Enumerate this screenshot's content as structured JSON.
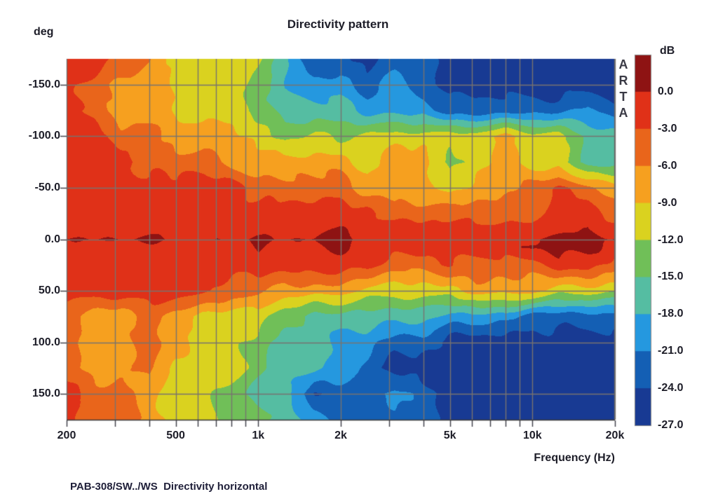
{
  "title": "Directivity pattern",
  "caption": "PAB-308/SW../WS  Directivity horizontal",
  "watermark": {
    "text": "ARTA"
  },
  "y_axis": {
    "unit": "deg",
    "tick_labels": [
      "-150.0",
      "-100.0",
      "-50.0",
      "0.0",
      "50.0",
      "100.0",
      "150.0"
    ],
    "tick_values": [
      -150,
      -100,
      -50,
      0,
      50,
      100,
      150
    ],
    "range_deg": [
      -175,
      175
    ]
  },
  "x_axis": {
    "label": "Frequency (Hz)",
    "tick_labels": [
      "200",
      "500",
      "1k",
      "2k",
      "5k",
      "10k",
      "20k"
    ],
    "tick_values": [
      200,
      500,
      1000,
      2000,
      5000,
      10000,
      20000
    ],
    "gridline_values": [
      300,
      400,
      500,
      600,
      700,
      800,
      900,
      1000,
      2000,
      3000,
      4000,
      5000,
      6000,
      7000,
      8000,
      9000,
      10000,
      20000
    ],
    "minor_tick_values": [
      200,
      300,
      400,
      500,
      600,
      700,
      800,
      900,
      1000,
      2000,
      3000,
      4000,
      5000,
      6000,
      7000,
      8000,
      9000,
      10000,
      20000
    ],
    "scale": "log",
    "range_hz": [
      200,
      20000
    ]
  },
  "colorbar": {
    "unit": "dB",
    "tick_labels": [
      "0.0",
      "-3.0",
      "-6.0",
      "-9.0",
      "-12.0",
      "-15.0",
      "-18.0",
      "-21.0",
      "-24.0",
      "-27.0"
    ],
    "tick_values": [
      0,
      -3,
      -6,
      -9,
      -12,
      -15,
      -18,
      -21,
      -24,
      -27
    ],
    "band_step_db": 3,
    "colors": [
      "#8e1313",
      "#e03118",
      "#e9651b",
      "#f6a01f",
      "#dad21f",
      "#70bf58",
      "#55bda2",
      "#2598df",
      "#145fb4",
      "#183a93"
    ]
  },
  "grid_color": "#77736f",
  "chart_data": {
    "type": "heatmap",
    "title": "Directivity pattern",
    "xlabel": "Frequency (Hz)",
    "ylabel": "deg",
    "value_unit": "dB",
    "x_scale": "log",
    "x_range_hz": [
      200,
      20000
    ],
    "y_range_deg": [
      -175,
      175
    ],
    "color_levels_db": [
      0,
      -3,
      -6,
      -9,
      -12,
      -15,
      -18,
      -21,
      -24,
      -27
    ],
    "x_frequencies_hz": [
      200,
      250,
      315,
      400,
      500,
      630,
      800,
      1000,
      1250,
      1600,
      2000,
      2500,
      3150,
      4000,
      5000,
      6300,
      8000,
      10000,
      12500,
      16000,
      20000
    ],
    "y_angles_deg": [
      -175,
      -150,
      -125,
      -100,
      -75,
      -50,
      -25,
      -8,
      0,
      8,
      25,
      50,
      75,
      100,
      125,
      150,
      175
    ],
    "values_db": [
      [
        -1.5,
        -1.5,
        -3,
        -6,
        -9.5,
        -10.5,
        -10.5,
        -12,
        -17,
        -24.5,
        -22.5,
        -25.5,
        -22.5,
        -22.5,
        -25.5,
        -25.5,
        -25.5,
        -25.5,
        -25.5,
        -25.5,
        -25.5
      ],
      [
        -1.5,
        -4.5,
        -7.5,
        -7.5,
        -9.5,
        -10.5,
        -10.5,
        -13.5,
        -18.5,
        -19.5,
        -19.5,
        -22.5,
        -19.5,
        -22.5,
        -25.5,
        -25.5,
        -25.5,
        -25.5,
        -25.5,
        -25.5,
        -25.5
      ],
      [
        -1.5,
        -4.5,
        -7.5,
        -7.5,
        -9,
        -10.5,
        -10.5,
        -13.5,
        -16.5,
        -16.5,
        -16.5,
        -19.5,
        -19.5,
        -19.5,
        -22.5,
        -22.5,
        -22.5,
        -22.5,
        -22.5,
        -19.5,
        -22.5
      ],
      [
        -1.5,
        -1.5,
        -4.5,
        -4.5,
        -7.5,
        -7.5,
        -7.5,
        -10.5,
        -13.5,
        -11.5,
        -12.5,
        -10.5,
        -10.5,
        -10.5,
        -10.5,
        -10.5,
        -7.5,
        -10.5,
        -10.5,
        -16.5,
        -16.5
      ],
      [
        -1.5,
        -1.5,
        -1.5,
        -4.5,
        -4.5,
        -4.5,
        -7.5,
        -7.5,
        -7.5,
        -7.5,
        -7.5,
        -10.5,
        -7.5,
        -7.5,
        -13.5,
        -10.5,
        -7.5,
        -10.5,
        -10.5,
        -16.5,
        -16.5
      ],
      [
        -1.5,
        -1.5,
        -1.5,
        -1.5,
        -1.5,
        -1.5,
        -1.5,
        -4.5,
        -4.5,
        -4.5,
        -4.5,
        -7.5,
        -7.5,
        -7.5,
        -10.5,
        -7.5,
        -7.5,
        -4.5,
        -3,
        -4.5,
        -7.5
      ],
      [
        -1.5,
        -1.5,
        -1.5,
        -1.5,
        -1.5,
        -1.5,
        -1.5,
        -1.5,
        -1.5,
        -1.5,
        -1.5,
        -1.5,
        -4.5,
        -4.5,
        -4.5,
        -4.5,
        -4.5,
        -4.5,
        -1.5,
        -1.5,
        -4.5
      ],
      [
        -1.2,
        -1.2,
        -1.2,
        -1.2,
        -1.2,
        -1.2,
        -1.2,
        -1.2,
        -1.2,
        -1.2,
        0.5,
        -1.2,
        -1.5,
        -1.5,
        -1.5,
        -1.5,
        -1.5,
        -1.5,
        -1.2,
        0.5,
        -1.5
      ],
      [
        0.4,
        0.4,
        0.4,
        0.3,
        -0.5,
        -0.5,
        -0.5,
        1.2,
        -0.4,
        0.2,
        1.4,
        -0.4,
        -1,
        -1,
        -1,
        -1,
        -1,
        0.4,
        1.3,
        1.4,
        -0.4
      ],
      [
        -1.2,
        -1.2,
        -1.2,
        -1.2,
        -1.2,
        -1.2,
        -1.2,
        0.4,
        -1.2,
        -1.2,
        0.8,
        -1.2,
        -1.5,
        -1.5,
        -1.5,
        -1.5,
        -1.5,
        0.8,
        1.2,
        1.2,
        -1.5
      ],
      [
        -1.5,
        -1.5,
        -1.5,
        -1.5,
        -1.5,
        -1.5,
        -1.5,
        -1.5,
        -1.5,
        -1.5,
        -1.5,
        -1.5,
        -4.5,
        -4.5,
        -3,
        -4.5,
        -4.5,
        -4.5,
        -1.5,
        -1.5,
        -4.5
      ],
      [
        -1.5,
        -1.5,
        -1.5,
        -1.5,
        -1.5,
        -1.5,
        -4.5,
        -4.5,
        -7.5,
        -7.5,
        -7.5,
        -10.5,
        -10.5,
        -10.5,
        -10.5,
        -7.5,
        -7.5,
        -7.5,
        -10.5,
        -10.5,
        -11.5
      ],
      [
        -4.5,
        -7.5,
        -7.5,
        -4.5,
        -7.5,
        -10.5,
        -10.5,
        -10.5,
        -13.5,
        -16.5,
        -16.5,
        -16.5,
        -16.5,
        -16.5,
        -19.5,
        -19.5,
        -19.5,
        -22.5,
        -22.5,
        -22.5,
        -22.5
      ],
      [
        -4.5,
        -7.5,
        -7.5,
        -4.5,
        -7.5,
        -10.5,
        -10.5,
        -13.5,
        -16.5,
        -16.5,
        -19.5,
        -19.5,
        -22.5,
        -22.5,
        -25.5,
        -25.5,
        -25.5,
        -25.5,
        -25.5,
        -25.5,
        -25.5
      ],
      [
        -4.5,
        -7.5,
        -7.5,
        -4.5,
        -10.5,
        -10.5,
        -10.5,
        -13.5,
        -16.5,
        -16.5,
        -19.5,
        -22.5,
        -25.5,
        -25.5,
        -25.5,
        -25.5,
        -25.5,
        -25.5,
        -25.5,
        -25.5,
        -25.5
      ],
      [
        -1.5,
        -4.5,
        -4.5,
        -7.5,
        -10.5,
        -10.5,
        -13.5,
        -16.5,
        -16.5,
        -24.5,
        -22.5,
        -22.5,
        -19.5,
        -22.5,
        -25.5,
        -25.5,
        -25.5,
        -25.5,
        -25.5,
        -25.5,
        -25.5
      ],
      [
        -1.5,
        -4.5,
        -4.5,
        -7.5,
        -10.5,
        -10.5,
        -13.5,
        -13.5,
        -16.5,
        -19.5,
        -22.5,
        -22.5,
        -22.5,
        -22.5,
        -25.5,
        -25.5,
        -25.5,
        -25.5,
        -25.5,
        -25.5,
        -25.5
      ]
    ]
  }
}
